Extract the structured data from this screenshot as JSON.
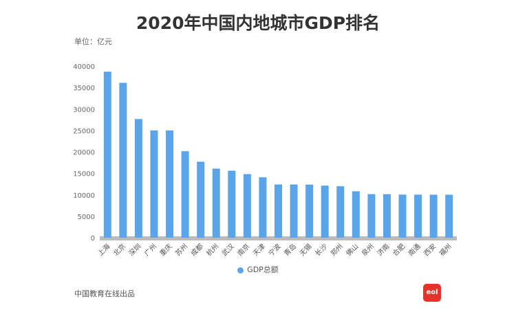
{
  "chart_data": {
    "type": "bar",
    "title": "2020年中国内地城市GDP排名",
    "unit_label": "单位：亿元",
    "categories": [
      "上海",
      "北京",
      "深圳",
      "广州",
      "重庆",
      "苏州",
      "成都",
      "杭州",
      "武汉",
      "南京",
      "天津",
      "宁波",
      "青岛",
      "无锡",
      "长沙",
      "郑州",
      "佛山",
      "泉州",
      "济南",
      "合肥",
      "南通",
      "西安",
      "福州"
    ],
    "series": [
      {
        "name": "GDP总额",
        "values": [
          38701,
          36103,
          27670,
          25019,
          25003,
          20171,
          17717,
          16106,
          15616,
          14818,
          14084,
          12409,
          12401,
          12370,
          12143,
          12003,
          10816,
          10159,
          10141,
          10046,
          10036,
          10020,
          10020
        ],
        "color": "#5aa5ea"
      }
    ],
    "ylim": [
      0,
      40000
    ],
    "yticks": [
      0,
      5000,
      10000,
      15000,
      20000,
      25000,
      30000,
      35000,
      40000
    ],
    "grid": false,
    "legend": "bottom"
  },
  "footer": {
    "source": "中国教育在线出品",
    "logo_text": "eol"
  }
}
